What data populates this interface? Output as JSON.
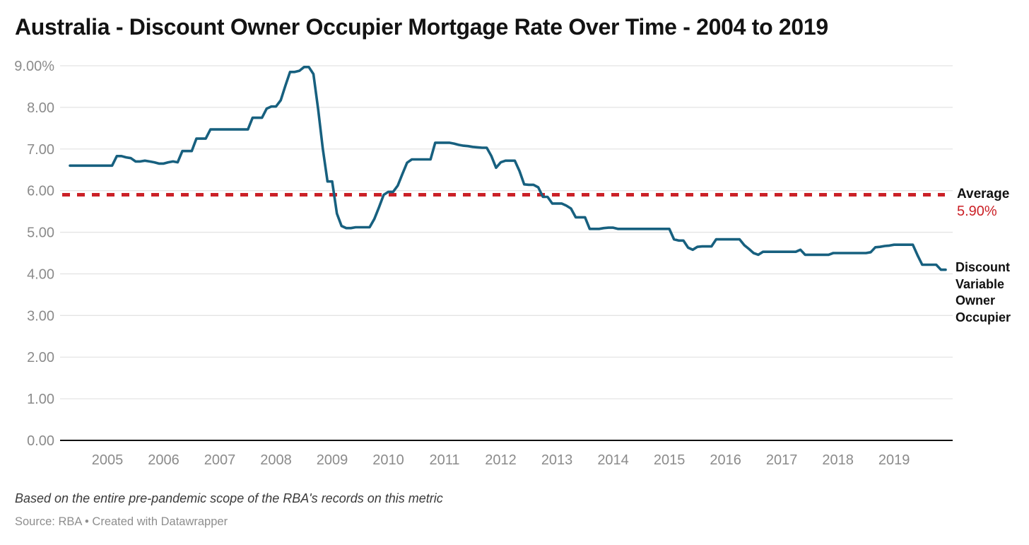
{
  "title": "Australia - Discount Owner Occupier Mortgage Rate Over Time - 2004 to 2019",
  "notes": "Based on the entire pre-pandemic scope of the RBA's records on this metric",
  "source": "Source: RBA • Created with Datawrapper",
  "annotations": {
    "average_label": "Average",
    "average_value": "5.90%",
    "series_label": "Discount Variable Owner Occupier"
  },
  "colors": {
    "accent_line": "#17607f",
    "average_line": "#cb2127",
    "grid": "#e4e4e4",
    "baseline": "#111111",
    "axis_text": "#8b8b8b",
    "title_text": "#131313",
    "note_text": "#3a3a3a",
    "source_text": "#8e8e8e"
  },
  "chart_data": {
    "type": "line",
    "title": "Australia - Discount Owner Occupier Mortgage Rate Over Time - 2004 to 2019",
    "xlabel": "",
    "ylabel": "",
    "unit": "%",
    "frequency": "monthly",
    "x_start": "2004-05",
    "x_end": "2019-12",
    "ylim": [
      0,
      9
    ],
    "grid": true,
    "y_ticks": [
      "9.00%",
      "8.00",
      "7.00",
      "6.00",
      "5.00",
      "4.00",
      "3.00",
      "2.00",
      "1.00",
      "0.00"
    ],
    "x_ticks": [
      2005,
      2006,
      2007,
      2008,
      2009,
      2010,
      2011,
      2012,
      2013,
      2014,
      2015,
      2016,
      2017,
      2018,
      2019
    ],
    "average_line": 5.9,
    "legend_position": "right-of-line-end",
    "series": [
      {
        "name": "Discount Variable Owner Occupier",
        "values": [
          6.6,
          6.6,
          6.6,
          6.6,
          6.6,
          6.6,
          6.6,
          6.6,
          6.6,
          6.6,
          6.83,
          6.83,
          6.8,
          6.78,
          6.7,
          6.7,
          6.72,
          6.7,
          6.68,
          6.65,
          6.65,
          6.68,
          6.7,
          6.68,
          6.95,
          6.95,
          6.95,
          7.25,
          7.25,
          7.25,
          7.47,
          7.47,
          7.47,
          7.47,
          7.47,
          7.47,
          7.47,
          7.47,
          7.47,
          7.75,
          7.75,
          7.75,
          7.97,
          8.02,
          8.02,
          8.17,
          8.52,
          8.85,
          8.85,
          8.88,
          8.97,
          8.97,
          8.8,
          7.95,
          7.0,
          6.22,
          6.22,
          5.45,
          5.15,
          5.1,
          5.1,
          5.12,
          5.12,
          5.12,
          5.12,
          5.32,
          5.6,
          5.9,
          5.97,
          5.97,
          6.12,
          6.4,
          6.67,
          6.75,
          6.75,
          6.75,
          6.75,
          6.75,
          7.15,
          7.15,
          7.15,
          7.15,
          7.13,
          7.1,
          7.08,
          7.07,
          7.05,
          7.04,
          7.03,
          7.03,
          6.83,
          6.55,
          6.68,
          6.72,
          6.72,
          6.72,
          6.47,
          6.15,
          6.14,
          6.14,
          6.08,
          5.85,
          5.85,
          5.69,
          5.69,
          5.69,
          5.64,
          5.57,
          5.36,
          5.36,
          5.36,
          5.08,
          5.08,
          5.08,
          5.1,
          5.11,
          5.11,
          5.08,
          5.08,
          5.08,
          5.08,
          5.08,
          5.08,
          5.08,
          5.08,
          5.08,
          5.08,
          5.08,
          5.08,
          4.83,
          4.8,
          4.8,
          4.63,
          4.58,
          4.65,
          4.66,
          4.66,
          4.66,
          4.83,
          4.83,
          4.83,
          4.83,
          4.83,
          4.83,
          4.69,
          4.6,
          4.5,
          4.46,
          4.53,
          4.53,
          4.53,
          4.53,
          4.53,
          4.53,
          4.53,
          4.53,
          4.58,
          4.46,
          4.46,
          4.46,
          4.46,
          4.46,
          4.46,
          4.5,
          4.5,
          4.5,
          4.5,
          4.5,
          4.5,
          4.5,
          4.5,
          4.52,
          4.64,
          4.65,
          4.67,
          4.68,
          4.7,
          4.7,
          4.7,
          4.7,
          4.7,
          4.45,
          4.22,
          4.22,
          4.22,
          4.22,
          4.1,
          4.1
        ]
      }
    ]
  }
}
